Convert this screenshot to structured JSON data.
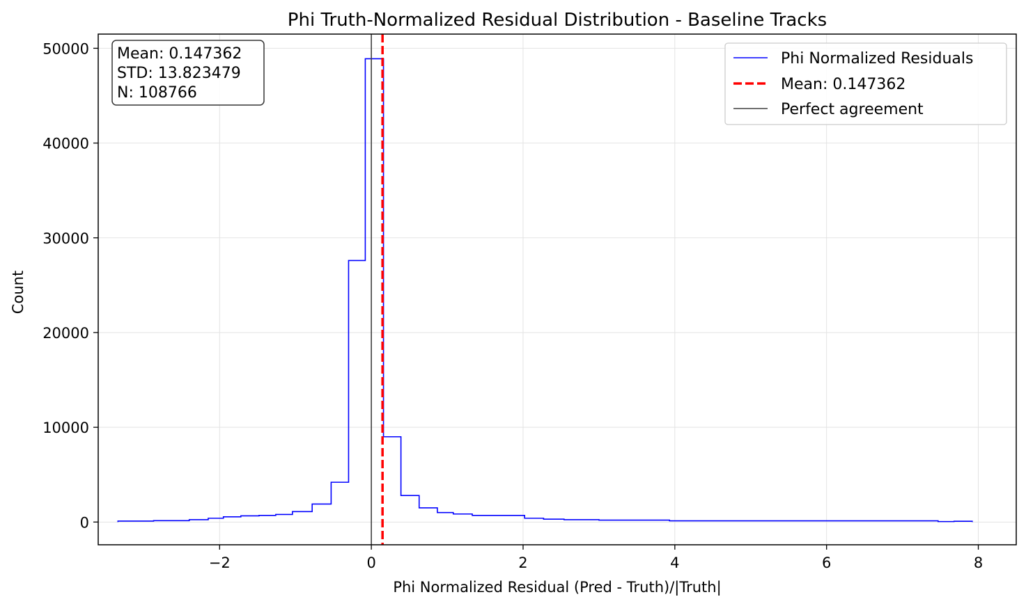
{
  "chart_data": {
    "type": "histogram",
    "title": "Phi Truth-Normalized Residual Distribution - Baseline Tracks",
    "xlabel": "Phi Normalized Residual (Pred - Truth)/|Truth|",
    "ylabel": "Count",
    "xlim": [
      -3.6,
      8.5
    ],
    "ylim": [
      -2400,
      51500
    ],
    "xticks": [
      -2,
      0,
      2,
      4,
      6,
      8
    ],
    "xtick_labels": [
      "−2",
      "0",
      "2",
      "4",
      "6",
      "8"
    ],
    "yticks": [
      0,
      10000,
      20000,
      30000,
      40000,
      50000
    ],
    "ytick_labels": [
      "0",
      "10000",
      "20000",
      "30000",
      "40000",
      "50000"
    ],
    "grid": true,
    "legend_position": "upper right",
    "series": [
      {
        "name": "Phi Normalized Residuals",
        "color": "#0000ff",
        "style": "step",
        "bin_edges": [
          -3.34,
          -2.87,
          -2.4,
          -2.15,
          -1.95,
          -1.72,
          -1.48,
          -1.26,
          -1.04,
          -0.78,
          -0.53,
          -0.3,
          -0.08,
          0.16,
          0.39,
          0.63,
          0.87,
          1.08,
          1.33,
          2.02,
          2.27,
          2.54,
          3.0,
          3.93,
          7.47,
          7.68,
          7.92
        ],
        "counts": [
          100,
          150,
          250,
          400,
          550,
          650,
          700,
          800,
          1100,
          1900,
          4200,
          27600,
          48900,
          9000,
          2800,
          1500,
          1000,
          850,
          700,
          400,
          300,
          250,
          200,
          130,
          50,
          80
        ]
      },
      {
        "name": "Mean: 0.147362",
        "color": "#ff0000",
        "style": "dashed-vline",
        "x": 0.147362
      },
      {
        "name": "Perfect agreement",
        "color": "#404040",
        "style": "solid-vline",
        "x": 0
      }
    ],
    "stats_box": {
      "lines": [
        "Mean: 0.147362",
        "STD: 13.823479",
        "N: 108766"
      ]
    }
  }
}
